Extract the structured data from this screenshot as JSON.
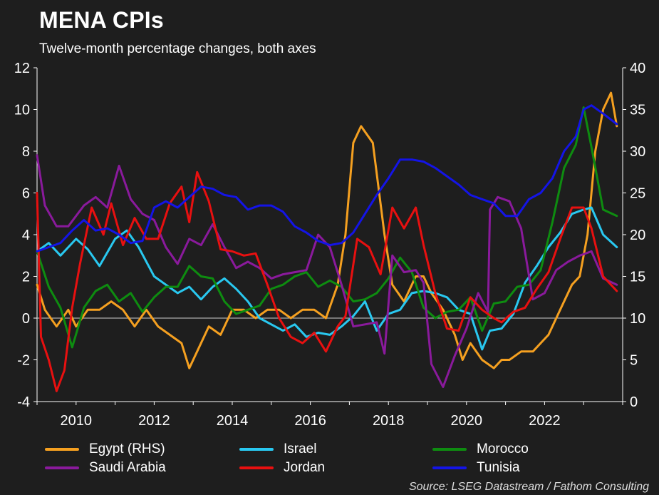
{
  "title": "MENA CPIs",
  "subtitle": "Twelve-month percentage changes, both axes",
  "source": "Source: LSEG Datastream / Fathom Consulting",
  "colors": {
    "background": "#1e1e1e",
    "egypt": "#f5a020",
    "israel": "#29c8f0",
    "morocco": "#0e8c10",
    "saudi": "#8a1a9c",
    "jordan": "#e81010",
    "tunisia": "#1414e6",
    "zero_line": "#d0d0d0"
  },
  "chart_data": {
    "type": "line",
    "title": "MENA CPIs",
    "subtitle": "Twelve-month percentage changes, both axes",
    "xlim": [
      2009.0,
      2024.0
    ],
    "x_ticks": [
      "2010",
      "2012",
      "2014",
      "2016",
      "2018",
      "2020",
      "2022"
    ],
    "ylim_left": [
      -4,
      12
    ],
    "y_ticks_left": [
      "12",
      "10",
      "8",
      "6",
      "4",
      "2",
      "0",
      "-2",
      "-4"
    ],
    "ylim_right": [
      0,
      40
    ],
    "y_ticks_right": [
      "40",
      "35",
      "30",
      "25",
      "20",
      "15",
      "10",
      "5",
      "0"
    ],
    "legend_position": "bottom",
    "series": [
      {
        "name": "Egypt (RHS)",
        "axis": "right",
        "color": "#f5a020",
        "x": [
          2009.0,
          2009.2,
          2009.5,
          2009.8,
          2010.0,
          2010.3,
          2010.6,
          2010.9,
          2011.2,
          2011.5,
          2011.8,
          2012.1,
          2012.4,
          2012.7,
          2012.9,
          2013.1,
          2013.4,
          2013.7,
          2014.0,
          2014.3,
          2014.6,
          2014.9,
          2015.2,
          2015.5,
          2015.8,
          2016.1,
          2016.4,
          2016.7,
          2016.9,
          2017.1,
          2017.3,
          2017.6,
          2017.9,
          2018.1,
          2018.4,
          2018.7,
          2018.9,
          2019.1,
          2019.4,
          2019.7,
          2019.9,
          2020.1,
          2020.4,
          2020.7,
          2020.9,
          2021.1,
          2021.4,
          2021.7,
          2021.9,
          2022.1,
          2022.4,
          2022.7,
          2022.9,
          2023.1,
          2023.3,
          2023.5,
          2023.7,
          2023.85
        ],
        "y": [
          14,
          11,
          9,
          11,
          9,
          11,
          11,
          12,
          11,
          9,
          11,
          9,
          8,
          7,
          4,
          6,
          9,
          8,
          11,
          11,
          10,
          11,
          11,
          10,
          11,
          11,
          10,
          14,
          20,
          31,
          33,
          31,
          20,
          14,
          12,
          15,
          15,
          13,
          11,
          8,
          5,
          7,
          5,
          4,
          5,
          5,
          6,
          6,
          7,
          8,
          11,
          14,
          15,
          20,
          30,
          35,
          37,
          33
        ]
      },
      {
        "name": "Israel",
        "axis": "left",
        "color": "#29c8f0",
        "x": [
          2009.0,
          2009.3,
          2009.6,
          2010.0,
          2010.3,
          2010.6,
          2011.0,
          2011.3,
          2011.6,
          2012.0,
          2012.3,
          2012.6,
          2012.9,
          2013.2,
          2013.5,
          2013.8,
          2014.1,
          2014.4,
          2014.7,
          2015.0,
          2015.3,
          2015.6,
          2015.9,
          2016.2,
          2016.5,
          2016.8,
          2017.1,
          2017.4,
          2017.7,
          2018.0,
          2018.3,
          2018.6,
          2018.9,
          2019.2,
          2019.5,
          2019.8,
          2020.1,
          2020.4,
          2020.6,
          2020.9,
          2021.2,
          2021.5,
          2021.8,
          2022.1,
          2022.4,
          2022.7,
          2023.0,
          2023.2,
          2023.5,
          2023.85
        ],
        "y": [
          3.2,
          3.6,
          3.0,
          3.8,
          3.3,
          2.5,
          3.8,
          4.2,
          3.4,
          2.0,
          1.6,
          1.2,
          1.5,
          0.9,
          1.5,
          1.9,
          1.4,
          0.8,
          0.0,
          -0.3,
          -0.6,
          -0.3,
          -0.9,
          -0.7,
          -0.8,
          -0.4,
          0.1,
          0.8,
          -0.6,
          0.2,
          0.4,
          1.2,
          1.3,
          1.2,
          1.0,
          0.4,
          0.2,
          -1.5,
          -0.6,
          -0.5,
          0.2,
          1.7,
          2.5,
          3.4,
          4.1,
          5.0,
          5.2,
          5.3,
          4.0,
          3.4
        ]
      },
      {
        "name": "Morocco",
        "axis": "left",
        "color": "#0e8c10",
        "x": [
          2009.0,
          2009.3,
          2009.6,
          2009.9,
          2010.2,
          2010.5,
          2010.8,
          2011.1,
          2011.4,
          2011.7,
          2012.0,
          2012.3,
          2012.6,
          2012.9,
          2013.2,
          2013.5,
          2013.8,
          2014.1,
          2014.4,
          2014.7,
          2015.0,
          2015.3,
          2015.6,
          2015.9,
          2016.2,
          2016.5,
          2016.8,
          2017.1,
          2017.4,
          2017.7,
          2018.0,
          2018.3,
          2018.6,
          2018.9,
          2019.2,
          2019.5,
          2019.8,
          2020.1,
          2020.4,
          2020.7,
          2021.0,
          2021.3,
          2021.6,
          2021.9,
          2022.2,
          2022.5,
          2022.8,
          2023.0,
          2023.2,
          2023.5,
          2023.85
        ],
        "y": [
          3.2,
          1.5,
          0.5,
          -1.4,
          0.5,
          1.3,
          1.6,
          0.8,
          1.2,
          0.3,
          1.0,
          1.5,
          1.5,
          2.5,
          2.0,
          1.9,
          0.8,
          0.2,
          0.4,
          0.6,
          1.4,
          1.6,
          2.0,
          2.2,
          1.5,
          1.8,
          1.5,
          0.8,
          0.9,
          1.2,
          1.9,
          2.9,
          2.2,
          0.5,
          0.0,
          0.3,
          0.4,
          1.0,
          -0.6,
          0.7,
          0.8,
          1.5,
          1.6,
          2.3,
          4.6,
          7.2,
          8.3,
          10.1,
          8.2,
          5.2,
          4.9
        ]
      },
      {
        "name": "Saudi Arabia",
        "axis": "left",
        "color": "#8a1a9c",
        "x": [
          2009.0,
          2009.2,
          2009.5,
          2009.8,
          2010.2,
          2010.5,
          2010.8,
          2011.1,
          2011.4,
          2011.7,
          2012.0,
          2012.3,
          2012.6,
          2012.9,
          2013.2,
          2013.5,
          2013.8,
          2014.1,
          2014.4,
          2014.7,
          2015.0,
          2015.3,
          2015.6,
          2015.9,
          2016.2,
          2016.5,
          2016.8,
          2017.1,
          2017.4,
          2017.7,
          2017.9,
          2018.1,
          2018.4,
          2018.7,
          2018.9,
          2019.1,
          2019.4,
          2019.7,
          2020.0,
          2020.3,
          2020.55,
          2020.6,
          2020.8,
          2021.1,
          2021.4,
          2021.7,
          2022.0,
          2022.3,
          2022.6,
          2022.9,
          2023.2,
          2023.5,
          2023.85
        ],
        "y": [
          7.8,
          5.4,
          4.4,
          4.4,
          5.4,
          5.8,
          5.3,
          7.3,
          5.7,
          5.0,
          4.7,
          3.4,
          2.6,
          3.8,
          3.5,
          4.5,
          3.4,
          2.4,
          2.7,
          2.4,
          1.9,
          2.1,
          2.2,
          2.3,
          4.0,
          3.4,
          1.6,
          -0.4,
          -0.3,
          -0.2,
          -1.7,
          3.0,
          2.2,
          2.3,
          1.7,
          -2.2,
          -3.3,
          -1.8,
          -0.5,
          1.2,
          0.3,
          5.2,
          5.8,
          5.6,
          4.3,
          0.9,
          1.2,
          2.3,
          2.7,
          3.0,
          3.2,
          1.9,
          1.6
        ]
      },
      {
        "name": "Jordan",
        "axis": "left",
        "color": "#e81010",
        "x": [
          2009.0,
          2009.1,
          2009.3,
          2009.5,
          2009.7,
          2009.9,
          2010.1,
          2010.4,
          2010.7,
          2010.9,
          2011.2,
          2011.5,
          2011.8,
          2012.1,
          2012.4,
          2012.7,
          2012.9,
          2013.1,
          2013.4,
          2013.7,
          2014.0,
          2014.3,
          2014.6,
          2014.9,
          2015.2,
          2015.5,
          2015.8,
          2016.1,
          2016.4,
          2016.7,
          2016.9,
          2017.2,
          2017.5,
          2017.8,
          2018.1,
          2018.4,
          2018.7,
          2018.9,
          2019.2,
          2019.5,
          2019.8,
          2020.1,
          2020.4,
          2020.7,
          2020.9,
          2021.2,
          2021.5,
          2021.8,
          2022.1,
          2022.4,
          2022.7,
          2023.0,
          2023.2,
          2023.5,
          2023.85
        ],
        "y": [
          6.0,
          -0.9,
          -2.0,
          -3.5,
          -2.5,
          0.5,
          2.6,
          5.3,
          4.0,
          5.5,
          3.5,
          4.8,
          3.8,
          3.8,
          5.5,
          6.3,
          4.6,
          7.0,
          5.6,
          3.3,
          3.2,
          3.0,
          3.1,
          1.6,
          0.0,
          -0.9,
          -1.2,
          -0.7,
          -1.6,
          -0.4,
          0.1,
          3.8,
          3.4,
          2.1,
          5.3,
          4.3,
          5.3,
          3.5,
          1.2,
          -0.5,
          -0.6,
          1.0,
          0.4,
          0.0,
          -0.2,
          0.3,
          0.5,
          1.4,
          2.2,
          3.8,
          5.3,
          5.3,
          4.3,
          2.0,
          1.3
        ]
      },
      {
        "name": "Tunisia",
        "axis": "left",
        "color": "#1414e6",
        "x": [
          2009.0,
          2009.3,
          2009.6,
          2009.9,
          2010.2,
          2010.5,
          2010.8,
          2011.1,
          2011.4,
          2011.7,
          2012.0,
          2012.3,
          2012.6,
          2012.9,
          2013.2,
          2013.5,
          2013.8,
          2014.1,
          2014.4,
          2014.7,
          2015.0,
          2015.3,
          2015.6,
          2015.9,
          2016.2,
          2016.5,
          2016.8,
          2017.1,
          2017.4,
          2017.7,
          2018.0,
          2018.3,
          2018.6,
          2018.9,
          2019.2,
          2019.5,
          2019.8,
          2020.1,
          2020.4,
          2020.7,
          2021.0,
          2021.3,
          2021.6,
          2021.9,
          2022.2,
          2022.5,
          2022.8,
          2023.0,
          2023.2,
          2023.5,
          2023.85
        ],
        "y": [
          3.2,
          3.4,
          3.6,
          4.2,
          4.7,
          4.2,
          4.3,
          4.0,
          3.6,
          3.7,
          5.3,
          5.6,
          5.3,
          5.8,
          6.3,
          6.2,
          5.9,
          5.8,
          5.2,
          5.4,
          5.4,
          5.1,
          4.4,
          4.1,
          3.7,
          3.5,
          3.6,
          4.1,
          5.0,
          5.9,
          6.7,
          7.6,
          7.6,
          7.5,
          7.2,
          6.8,
          6.4,
          5.9,
          5.7,
          5.5,
          4.9,
          4.9,
          5.7,
          6.0,
          6.7,
          8.0,
          8.7,
          10.0,
          10.2,
          9.8,
          9.3
        ]
      }
    ]
  }
}
